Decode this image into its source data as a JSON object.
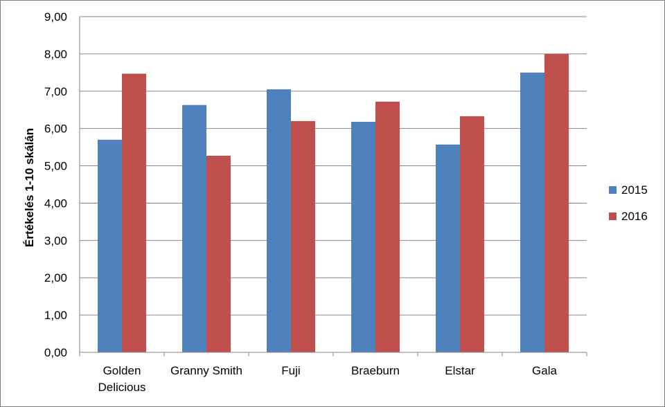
{
  "chart_data": {
    "type": "bar",
    "categories": [
      [
        "Golden",
        "Delicious"
      ],
      [
        "Granny Smith"
      ],
      [
        "Fuji"
      ],
      [
        "Braeburn"
      ],
      [
        "Elstar"
      ],
      [
        "Gala"
      ]
    ],
    "series": [
      {
        "name": "2015",
        "color": "#4f81bd",
        "values": [
          5.7,
          6.63,
          7.05,
          6.18,
          5.57,
          7.5
        ]
      },
      {
        "name": "2016",
        "color": "#c0504d",
        "values": [
          7.47,
          5.27,
          6.2,
          6.72,
          6.33,
          8.0
        ]
      }
    ],
    "ylabel": "Értékelés 1-10 skálán",
    "xlabel": "",
    "ylim": [
      0,
      9
    ],
    "yticks": [
      "0,00",
      "1,00",
      "2,00",
      "3,00",
      "4,00",
      "5,00",
      "6,00",
      "7,00",
      "8,00",
      "9,00"
    ],
    "grid": true,
    "legend_position": "right"
  }
}
